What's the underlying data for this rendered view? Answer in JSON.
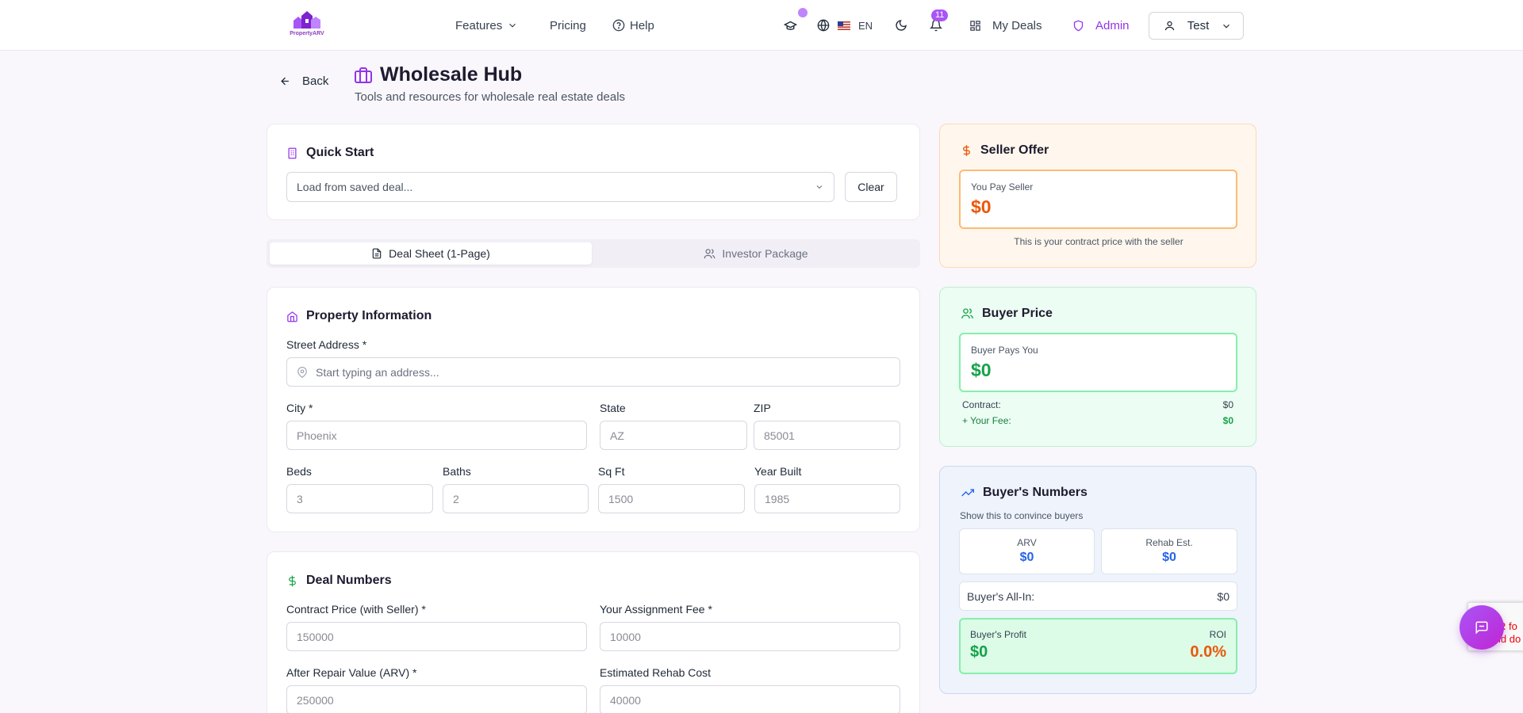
{
  "brand": {
    "logo_text": "PropertyARV"
  },
  "nav": {
    "features": "Features",
    "pricing": "Pricing",
    "help": "Help",
    "language": "EN",
    "notifications_count": "11",
    "my_deals": "My Deals",
    "admin": "Admin",
    "user": "Test"
  },
  "header": {
    "back": "Back",
    "title": "Wholesale Hub",
    "subtitle": "Tools and resources for wholesale real estate deals"
  },
  "quick_start": {
    "title": "Quick Start",
    "select_placeholder": "Load from saved deal...",
    "clear": "Clear"
  },
  "tabs": [
    {
      "label": "Deal Sheet (1-Page)",
      "active": true
    },
    {
      "label": "Investor Package",
      "active": false
    }
  ],
  "property": {
    "title": "Property Information",
    "street_label": "Street Address *",
    "street_placeholder": "Start typing an address...",
    "city_label": "City *",
    "city_placeholder": "Phoenix",
    "state_label": "State",
    "state_placeholder": "AZ",
    "zip_label": "ZIP",
    "zip_placeholder": "85001",
    "beds_label": "Beds",
    "beds_placeholder": "3",
    "baths_label": "Baths",
    "baths_placeholder": "2",
    "sqft_label": "Sq Ft",
    "sqft_placeholder": "1500",
    "year_label": "Year Built",
    "year_placeholder": "1985"
  },
  "deal": {
    "title": "Deal Numbers",
    "contract_label": "Contract Price (with Seller) *",
    "contract_placeholder": "150000",
    "fee_label": "Your Assignment Fee *",
    "fee_placeholder": "10000",
    "arv_label": "After Repair Value (ARV) *",
    "arv_placeholder": "250000",
    "rehab_label": "Estimated Rehab Cost",
    "rehab_placeholder": "40000"
  },
  "seller_offer": {
    "title": "Seller Offer",
    "caption": "You Pay Seller",
    "value": "$0",
    "note": "This is your contract price with the seller"
  },
  "buyer_price": {
    "title": "Buyer Price",
    "caption": "Buyer Pays You",
    "value": "$0",
    "contract_label": "Contract:",
    "contract_value": "$0",
    "fee_label": "+ Your Fee:",
    "fee_value": "$0"
  },
  "buyer_numbers": {
    "title": "Buyer's Numbers",
    "subtitle": "Show this to convince buyers",
    "arv_label": "ARV",
    "arv_value": "$0",
    "rehab_label": "Rehab Est.",
    "rehab_value": "$0",
    "allin_label": "Buyer's All-In:",
    "allin_value": "$0",
    "profit_label": "Buyer's Profit",
    "profit_value": "$0",
    "roi_label": "ROI",
    "roi_value": "0.0%"
  },
  "recaptcha_text": [
    "R fo",
    "ld do"
  ],
  "colors": {
    "accent": "#9333ea",
    "green": "#16a34a",
    "orange": "#ea580c",
    "blue": "#2563eb"
  }
}
